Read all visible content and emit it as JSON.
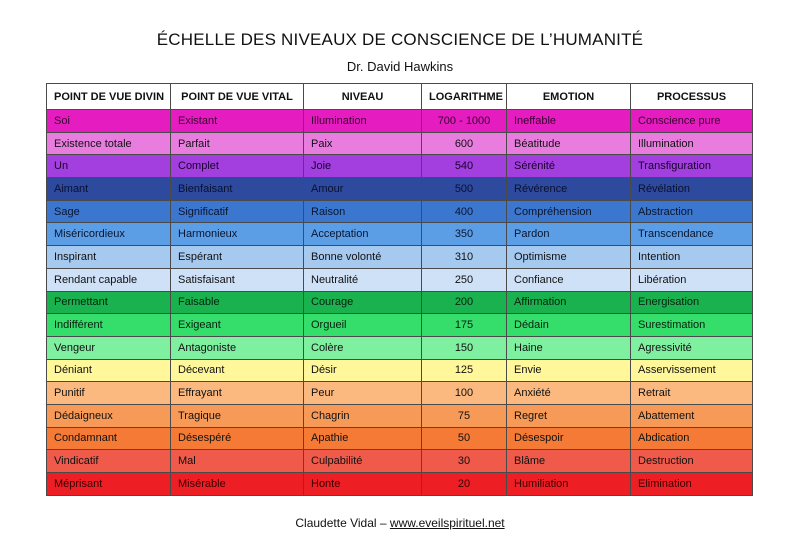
{
  "title": "ÉCHELLE DES NIVEAUX DE CONSCIENCE DE L’HUMANITÉ",
  "subtitle": "Dr. David Hawkins",
  "table": {
    "headers": [
      "POINT DE VUE DIVIN",
      "POINT DE VUE VITAL",
      "NIVEAU",
      "LOGARITHME",
      "EMOTION",
      "PROCESSUS"
    ],
    "rows": [
      {
        "cells": [
          "Soi",
          "Existant",
          "Illumination",
          "700 - 1000",
          "Ineffable",
          "Conscience pure"
        ],
        "color": "#e51cc0",
        "text": "#3a0030"
      },
      {
        "cells": [
          "Existence totale",
          "Parfait",
          "Paix",
          "600",
          "Béatitude",
          "Illumination"
        ],
        "color": "#e97ddf",
        "text": "#111111"
      },
      {
        "cells": [
          "Un",
          "Complet",
          "Joie",
          "540",
          "Sérénité",
          "Transfiguration"
        ],
        "color": "#a23fde",
        "text": "#1a0030"
      },
      {
        "cells": [
          "Aimant",
          "Bienfaisant",
          "Amour",
          "500",
          "Révérence",
          "Révélation"
        ],
        "color": "#2d4a9e",
        "text": "#0a1030"
      },
      {
        "cells": [
          "Sage",
          "Significatif",
          "Raison",
          "400",
          "Compréhension",
          "Abstraction"
        ],
        "color": "#3c77cf",
        "text": "#0a1530"
      },
      {
        "cells": [
          "Miséricordieux",
          "Harmonieux",
          "Acceptation",
          "350",
          "Pardon",
          "Transcendance"
        ],
        "color": "#5c9ee6",
        "text": "#0a1530"
      },
      {
        "cells": [
          "Inspirant",
          "Espérant",
          "Bonne volonté",
          "310",
          "Optimisme",
          "Intention"
        ],
        "color": "#a6c9f0",
        "text": "#111111"
      },
      {
        "cells": [
          "Rendant capable",
          "Satisfaisant",
          "Neutralité",
          "250",
          "Confiance",
          "Libération"
        ],
        "color": "#cfe1f7",
        "text": "#111111"
      },
      {
        "cells": [
          "Permettant",
          "Faisable",
          "Courage",
          "200",
          "Affirmation",
          "Energisation"
        ],
        "color": "#1ab24e",
        "text": "#062010"
      },
      {
        "cells": [
          "Indifférent",
          "Exigeant",
          "Orgueil",
          "175",
          "Dédain",
          "Surestimation"
        ],
        "color": "#35dd6a",
        "text": "#062010"
      },
      {
        "cells": [
          "Vengeur",
          "Antagoniste",
          "Colère",
          "150",
          "Haine",
          "Agressivité"
        ],
        "color": "#7ff0a0",
        "text": "#111111"
      },
      {
        "cells": [
          "Déniant",
          "Décevant",
          "Désir",
          "125",
          "Envie",
          "Asservissement"
        ],
        "color": "#fff79a",
        "text": "#111111"
      },
      {
        "cells": [
          "Punitif",
          "Effrayant",
          "Peur",
          "100",
          "Anxiété",
          "Retrait"
        ],
        "color": "#fbb87f",
        "text": "#111111"
      },
      {
        "cells": [
          "Dédaigneux",
          "Tragique",
          "Chagrin",
          "75",
          "Regret",
          "Abattement"
        ],
        "color": "#f79a58",
        "text": "#111111"
      },
      {
        "cells": [
          "Condamnant",
          "Désespéré",
          "Apathie",
          "50",
          "Désespoir",
          "Abdication"
        ],
        "color": "#f57a35",
        "text": "#111111"
      },
      {
        "cells": [
          "Vindicatif",
          "Mal",
          "Culpabilité",
          "30",
          "Blâme",
          "Destruction"
        ],
        "color": "#f05a4a",
        "text": "#111111"
      },
      {
        "cells": [
          "Méprisant",
          "Misérable",
          "Honte",
          "20",
          "Humiliation",
          "Elimination"
        ],
        "color": "#ee1e25",
        "text": "#3a0000"
      }
    ]
  },
  "footer": {
    "author": "Claudette Vidal –",
    "link": "www.eveilspirituel.net"
  }
}
